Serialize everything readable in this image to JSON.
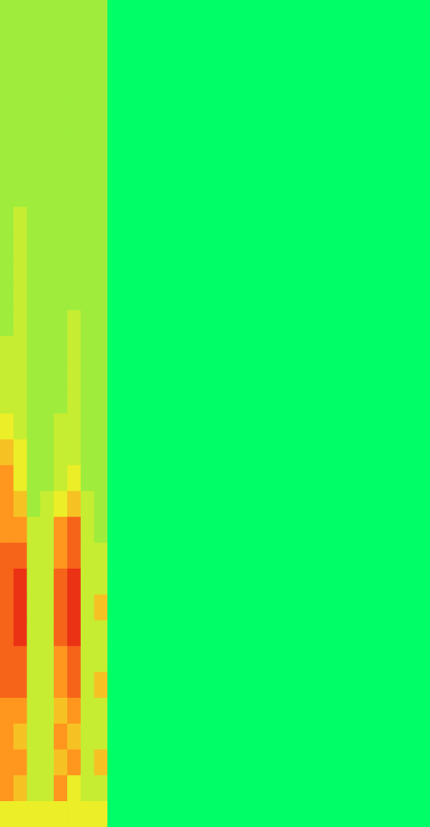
{
  "chart_data": {
    "type": "heatmap",
    "tick_labels": false,
    "zlim": [
      0,
      10
    ],
    "cells": [
      [
        3,
        3,
        3,
        3,
        3,
        3,
        3,
        3,
        0,
        0,
        0,
        0,
        0,
        0,
        0,
        0,
        0,
        0,
        0,
        0,
        0,
        0,
        0,
        0,
        0,
        0,
        0,
        0,
        0,
        0,
        0,
        0
      ],
      [
        3,
        3,
        3,
        3,
        3,
        3,
        3,
        3,
        0,
        0,
        0,
        0,
        0,
        0,
        0,
        0,
        0,
        0,
        0,
        0,
        0,
        0,
        0,
        0,
        0,
        0,
        0,
        0,
        0,
        0,
        0,
        0
      ],
      [
        3,
        3,
        3,
        3,
        3,
        3,
        3,
        3,
        0,
        0,
        0,
        0,
        0,
        0,
        0,
        0,
        0,
        0,
        0,
        0,
        0,
        0,
        0,
        0,
        0,
        0,
        0,
        0,
        0,
        0,
        0,
        0
      ],
      [
        3,
        3,
        3,
        3,
        3,
        3,
        3,
        3,
        0,
        0,
        0,
        0,
        0,
        0,
        0,
        0,
        0,
        0,
        0,
        0,
        0,
        0,
        0,
        0,
        0,
        0,
        0,
        0,
        0,
        0,
        0,
        0
      ],
      [
        3,
        3,
        3,
        3,
        3,
        3,
        3,
        3,
        0,
        0,
        0,
        0,
        0,
        0,
        0,
        0,
        0,
        0,
        0,
        0,
        0,
        0,
        0,
        0,
        0,
        0,
        0,
        0,
        0,
        0,
        0,
        0
      ],
      [
        3,
        3,
        3,
        3,
        3,
        3,
        3,
        3,
        0,
        0,
        0,
        0,
        0,
        0,
        0,
        0,
        0,
        0,
        0,
        0,
        0,
        0,
        0,
        0,
        0,
        0,
        0,
        0,
        0,
        0,
        0,
        0
      ],
      [
        3,
        3,
        3,
        3,
        3,
        3,
        3,
        3,
        0,
        0,
        0,
        0,
        0,
        0,
        0,
        0,
        0,
        0,
        0,
        0,
        0,
        0,
        0,
        0,
        0,
        0,
        0,
        0,
        0,
        0,
        0,
        0
      ],
      [
        3,
        3,
        3,
        3,
        3,
        3,
        3,
        3,
        0,
        0,
        0,
        0,
        0,
        0,
        0,
        0,
        0,
        0,
        0,
        0,
        0,
        0,
        0,
        0,
        0,
        0,
        0,
        0,
        0,
        0,
        0,
        0
      ],
      [
        3,
        4,
        3,
        3,
        3,
        3,
        3,
        3,
        0,
        0,
        0,
        0,
        0,
        0,
        0,
        0,
        0,
        0,
        0,
        0,
        0,
        0,
        0,
        0,
        0,
        0,
        0,
        0,
        0,
        0,
        0,
        0
      ],
      [
        3,
        4,
        3,
        3,
        3,
        3,
        3,
        3,
        0,
        0,
        0,
        0,
        0,
        0,
        0,
        0,
        0,
        0,
        0,
        0,
        0,
        0,
        0,
        0,
        0,
        0,
        0,
        0,
        0,
        0,
        0,
        0
      ],
      [
        3,
        4,
        3,
        3,
        3,
        3,
        3,
        3,
        0,
        0,
        0,
        0,
        0,
        0,
        0,
        0,
        0,
        0,
        0,
        0,
        0,
        0,
        0,
        0,
        0,
        0,
        0,
        0,
        0,
        0,
        0,
        0
      ],
      [
        3,
        4,
        3,
        3,
        3,
        3,
        3,
        3,
        0,
        0,
        0,
        0,
        0,
        0,
        0,
        0,
        0,
        0,
        0,
        0,
        0,
        0,
        0,
        0,
        0,
        0,
        0,
        0,
        0,
        0,
        0,
        0
      ],
      [
        3,
        4,
        3,
        3,
        3,
        4,
        3,
        3,
        0,
        0,
        0,
        0,
        0,
        0,
        0,
        0,
        0,
        0,
        0,
        0,
        0,
        0,
        0,
        0,
        0,
        0,
        0,
        0,
        0,
        0,
        0,
        0
      ],
      [
        4,
        4,
        3,
        3,
        3,
        4,
        3,
        3,
        0,
        0,
        0,
        0,
        0,
        0,
        0,
        0,
        0,
        0,
        0,
        0,
        0,
        0,
        0,
        0,
        0,
        0,
        0,
        0,
        0,
        0,
        0,
        0
      ],
      [
        4,
        4,
        3,
        3,
        3,
        4,
        3,
        3,
        0,
        0,
        0,
        0,
        0,
        0,
        0,
        0,
        0,
        0,
        0,
        0,
        0,
        0,
        0,
        0,
        0,
        0,
        0,
        0,
        0,
        0,
        0,
        0
      ],
      [
        4,
        4,
        3,
        3,
        3,
        4,
        3,
        3,
        0,
        0,
        0,
        0,
        0,
        0,
        0,
        0,
        0,
        0,
        0,
        0,
        0,
        0,
        0,
        0,
        0,
        0,
        0,
        0,
        0,
        0,
        0,
        0
      ],
      [
        5,
        4,
        3,
        3,
        4,
        4,
        3,
        3,
        0,
        0,
        0,
        0,
        0,
        0,
        0,
        0,
        0,
        0,
        0,
        0,
        0,
        0,
        0,
        0,
        0,
        0,
        0,
        0,
        0,
        0,
        0,
        0
      ],
      [
        6,
        5,
        3,
        3,
        4,
        4,
        3,
        3,
        0,
        0,
        0,
        0,
        0,
        0,
        0,
        0,
        0,
        0,
        0,
        0,
        0,
        0,
        0,
        0,
        0,
        0,
        0,
        0,
        0,
        0,
        0,
        0
      ],
      [
        7,
        5,
        3,
        3,
        4,
        5,
        3,
        3,
        0,
        0,
        0,
        0,
        0,
        0,
        0,
        0,
        0,
        0,
        0,
        0,
        0,
        0,
        0,
        0,
        0,
        0,
        0,
        0,
        0,
        0,
        0,
        0
      ],
      [
        7,
        6,
        3,
        4,
        5,
        6,
        4,
        3,
        0,
        0,
        0,
        0,
        0,
        0,
        0,
        0,
        0,
        0,
        0,
        0,
        0,
        0,
        0,
        0,
        0,
        0,
        0,
        0,
        0,
        0,
        0,
        0
      ],
      [
        7,
        7,
        4,
        4,
        7,
        8,
        4,
        3,
        0,
        0,
        0,
        0,
        0,
        0,
        0,
        0,
        0,
        0,
        0,
        0,
        0,
        0,
        0,
        0,
        0,
        0,
        0,
        0,
        0,
        0,
        0,
        0
      ],
      [
        8,
        8,
        4,
        4,
        7,
        8,
        4,
        4,
        0,
        0,
        0,
        0,
        0,
        0,
        0,
        0,
        0,
        0,
        0,
        0,
        0,
        0,
        0,
        0,
        0,
        0,
        0,
        0,
        0,
        0,
        0,
        0
      ],
      [
        8,
        9,
        4,
        4,
        8,
        9,
        4,
        4,
        0,
        0,
        0,
        0,
        0,
        0,
        0,
        0,
        0,
        0,
        0,
        0,
        0,
        0,
        0,
        0,
        0,
        0,
        0,
        0,
        0,
        0,
        0,
        0
      ],
      [
        8,
        9,
        4,
        4,
        8,
        9,
        4,
        6,
        0,
        0,
        0,
        0,
        0,
        0,
        0,
        0,
        0,
        0,
        0,
        0,
        0,
        0,
        0,
        0,
        0,
        0,
        0,
        0,
        0,
        0,
        0,
        0
      ],
      [
        8,
        9,
        4,
        4,
        8,
        9,
        4,
        4,
        0,
        0,
        0,
        0,
        0,
        0,
        0,
        0,
        0,
        0,
        0,
        0,
        0,
        0,
        0,
        0,
        0,
        0,
        0,
        0,
        0,
        0,
        0,
        0
      ],
      [
        8,
        8,
        4,
        4,
        7,
        8,
        4,
        4,
        0,
        0,
        0,
        0,
        0,
        0,
        0,
        0,
        0,
        0,
        0,
        0,
        0,
        0,
        0,
        0,
        0,
        0,
        0,
        0,
        0,
        0,
        0,
        0
      ],
      [
        8,
        8,
        4,
        4,
        7,
        8,
        4,
        6,
        0,
        0,
        0,
        0,
        0,
        0,
        0,
        0,
        0,
        0,
        0,
        0,
        0,
        0,
        0,
        0,
        0,
        0,
        0,
        0,
        0,
        0,
        0,
        0
      ],
      [
        7,
        7,
        4,
        4,
        6,
        7,
        4,
        4,
        0,
        0,
        0,
        0,
        0,
        0,
        0,
        0,
        0,
        0,
        0,
        0,
        0,
        0,
        0,
        0,
        0,
        0,
        0,
        0,
        0,
        0,
        0,
        0
      ],
      [
        7,
        6,
        4,
        4,
        7,
        6,
        4,
        4,
        0,
        0,
        0,
        0,
        0,
        0,
        0,
        0,
        0,
        0,
        0,
        0,
        0,
        0,
        0,
        0,
        0,
        0,
        0,
        0,
        0,
        0,
        0,
        0
      ],
      [
        7,
        7,
        4,
        4,
        6,
        7,
        4,
        6,
        0,
        0,
        0,
        0,
        0,
        0,
        0,
        0,
        0,
        0,
        0,
        0,
        0,
        0,
        0,
        0,
        0,
        0,
        0,
        0,
        0,
        0,
        0,
        0
      ],
      [
        7,
        6,
        4,
        4,
        7,
        5,
        4,
        4,
        0,
        0,
        0,
        0,
        0,
        0,
        0,
        0,
        0,
        0,
        0,
        0,
        0,
        0,
        0,
        0,
        0,
        0,
        0,
        0,
        0,
        0,
        0,
        0
      ],
      [
        5,
        5,
        5,
        5,
        5,
        5,
        5,
        5,
        0,
        0,
        0,
        0,
        0,
        0,
        0,
        0,
        0,
        0,
        0,
        0,
        0,
        0,
        0,
        0,
        0,
        0,
        0,
        0,
        0,
        0,
        0,
        0
      ]
    ]
  }
}
